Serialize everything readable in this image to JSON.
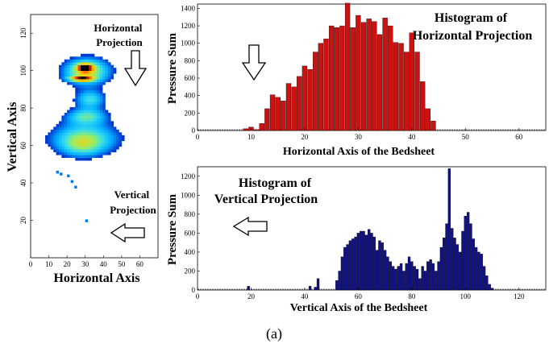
{
  "figure_label": "(a)",
  "chart_data": [
    {
      "type": "heatmap",
      "xlabel": "Horizontal Axis",
      "ylabel": "Vertical Axis",
      "xlim": [
        0,
        70
      ],
      "ylim": [
        0,
        130
      ],
      "x_ticks": [
        "0",
        "10",
        "20",
        "30",
        "40",
        "50",
        "60"
      ],
      "y_ticks": [
        "20",
        "40",
        "60",
        "80",
        "100",
        "120"
      ],
      "annotations": [
        {
          "text_lines": [
            "Horizontal",
            "Projection"
          ],
          "arrow": "down"
        },
        {
          "text_lines": [
            "Vertical",
            "Projection"
          ],
          "arrow": "left"
        }
      ],
      "colormap": [
        "#0033cc",
        "#00aaff",
        "#33ddee",
        "#99ee66",
        "#ffcc00",
        "#ff3300",
        "#000000"
      ]
    },
    {
      "type": "bar",
      "xlabel": "Horizontal Axis of the Bedsheet",
      "ylabel": "Pressure Sum",
      "xlim": [
        0,
        65
      ],
      "ylim": [
        0,
        1450
      ],
      "x_ticks": [
        "0",
        "10",
        "20",
        "30",
        "40",
        "50",
        "60"
      ],
      "y_ticks": [
        "0",
        "200",
        "400",
        "600",
        "800",
        "1000",
        "1200",
        "1400"
      ],
      "color": "#cc1111",
      "annotation": {
        "text_lines": [
          "Histogram of",
          "Horizontal Projection"
        ]
      },
      "arrow": "down",
      "x": [
        9,
        10,
        11,
        12,
        13,
        14,
        15,
        16,
        17,
        18,
        19,
        20,
        21,
        22,
        23,
        24,
        25,
        26,
        27,
        28,
        29,
        30,
        31,
        32,
        33,
        34,
        35,
        36,
        37,
        38,
        39,
        40,
        41,
        42,
        43,
        44
      ],
      "values": [
        20,
        40,
        10,
        80,
        250,
        410,
        380,
        340,
        540,
        500,
        620,
        740,
        700,
        900,
        1000,
        1050,
        1200,
        1180,
        1200,
        1460,
        1180,
        1320,
        1240,
        1280,
        1250,
        1100,
        1290,
        1200,
        1010,
        1000,
        900,
        1120,
        900,
        560,
        250,
        110
      ]
    },
    {
      "type": "bar",
      "xlabel": "Vertical Axis of the Bedsheet",
      "ylabel": "Pressure Sum",
      "xlim": [
        0,
        130
      ],
      "ylim": [
        0,
        1300
      ],
      "x_ticks": [
        "0",
        "20",
        "40",
        "60",
        "80",
        "100",
        "120"
      ],
      "y_ticks": [
        "0",
        "200",
        "400",
        "600",
        "800",
        "1000",
        "1200"
      ],
      "color": "#111188",
      "annotation": {
        "text_lines": [
          "Histogram of",
          "Vertical Projection"
        ]
      },
      "arrow": "left",
      "x": [
        19,
        42,
        44,
        45,
        52,
        53,
        54,
        55,
        56,
        57,
        58,
        59,
        60,
        61,
        62,
        63,
        64,
        65,
        66,
        67,
        68,
        69,
        70,
        71,
        72,
        73,
        74,
        75,
        76,
        77,
        78,
        79,
        80,
        81,
        82,
        83,
        84,
        85,
        86,
        87,
        88,
        89,
        90,
        91,
        92,
        93,
        94,
        95,
        96,
        97,
        98,
        99,
        100,
        101,
        102,
        103,
        104,
        105,
        106,
        107,
        108,
        109,
        110
      ],
      "values": [
        40,
        40,
        30,
        120,
        100,
        200,
        350,
        450,
        480,
        520,
        540,
        560,
        600,
        620,
        620,
        580,
        640,
        600,
        560,
        420,
        520,
        500,
        420,
        350,
        300,
        250,
        220,
        250,
        280,
        200,
        280,
        350,
        300,
        250,
        220,
        120,
        250,
        200,
        300,
        320,
        280,
        200,
        300,
        450,
        550,
        700,
        1280,
        650,
        550,
        480,
        400,
        620,
        780,
        820,
        700,
        540,
        450,
        400,
        380,
        250,
        150,
        60,
        20
      ]
    }
  ]
}
